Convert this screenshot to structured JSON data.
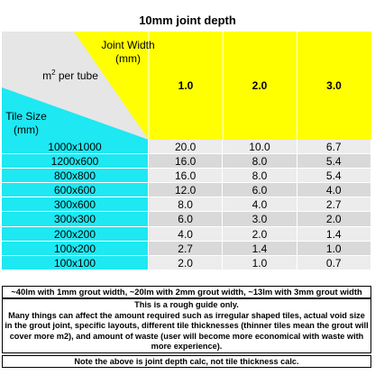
{
  "title": "10mm joint depth",
  "header": {
    "joint_width_line1": "Joint Width",
    "joint_width_line2": "(mm)",
    "m2_per_tube_prefix": "m",
    "m2_per_tube_sup": "2",
    "m2_per_tube_suffix": " per tube",
    "tile_size_line1": "Tile Size",
    "tile_size_line2": "(mm)",
    "columns": [
      "1.0",
      "2.0",
      "3.0"
    ]
  },
  "colors": {
    "yellow": "#ffff00",
    "cyan": "#1ee8f2",
    "grey_light": "#ececec",
    "grey_dark": "#d9d9d9"
  },
  "rows": [
    {
      "size": "1000x1000",
      "values": [
        "20.0",
        "10.0",
        "6.7"
      ]
    },
    {
      "size": "1200x600",
      "values": [
        "16.0",
        "8.0",
        "5.4"
      ]
    },
    {
      "size": "800x800",
      "values": [
        "16.0",
        "8.0",
        "5.4"
      ]
    },
    {
      "size": "600x600",
      "values": [
        "12.0",
        "6.0",
        "4.0"
      ]
    },
    {
      "size": "300x600",
      "values": [
        "8.0",
        "4.0",
        "2.7"
      ]
    },
    {
      "size": "300x300",
      "values": [
        "6.0",
        "3.0",
        "2.0"
      ]
    },
    {
      "size": "200x200",
      "values": [
        "4.0",
        "2.0",
        "1.4"
      ]
    },
    {
      "size": "100x200",
      "values": [
        "2.7",
        "1.4",
        "1.0"
      ]
    },
    {
      "size": "100x100",
      "values": [
        "2.0",
        "1.0",
        "0.7"
      ]
    }
  ],
  "notes": {
    "line1": "~40lm with 1mm grout width, ~20lm with 2mm grout width, ~13lm with 3mm grout width",
    "guide": "This is a rough guide only.",
    "details": "Many things can affect the amount required such as irregular shaped tiles, actual void size in the grout joint, specific layouts, different tile thicknesses (thinner tiles mean the grout will cover more m2), and amount of waste (user will become more economical with waste with more experience).",
    "footer": "Note the above is joint depth calc, not tile thickness calc."
  }
}
